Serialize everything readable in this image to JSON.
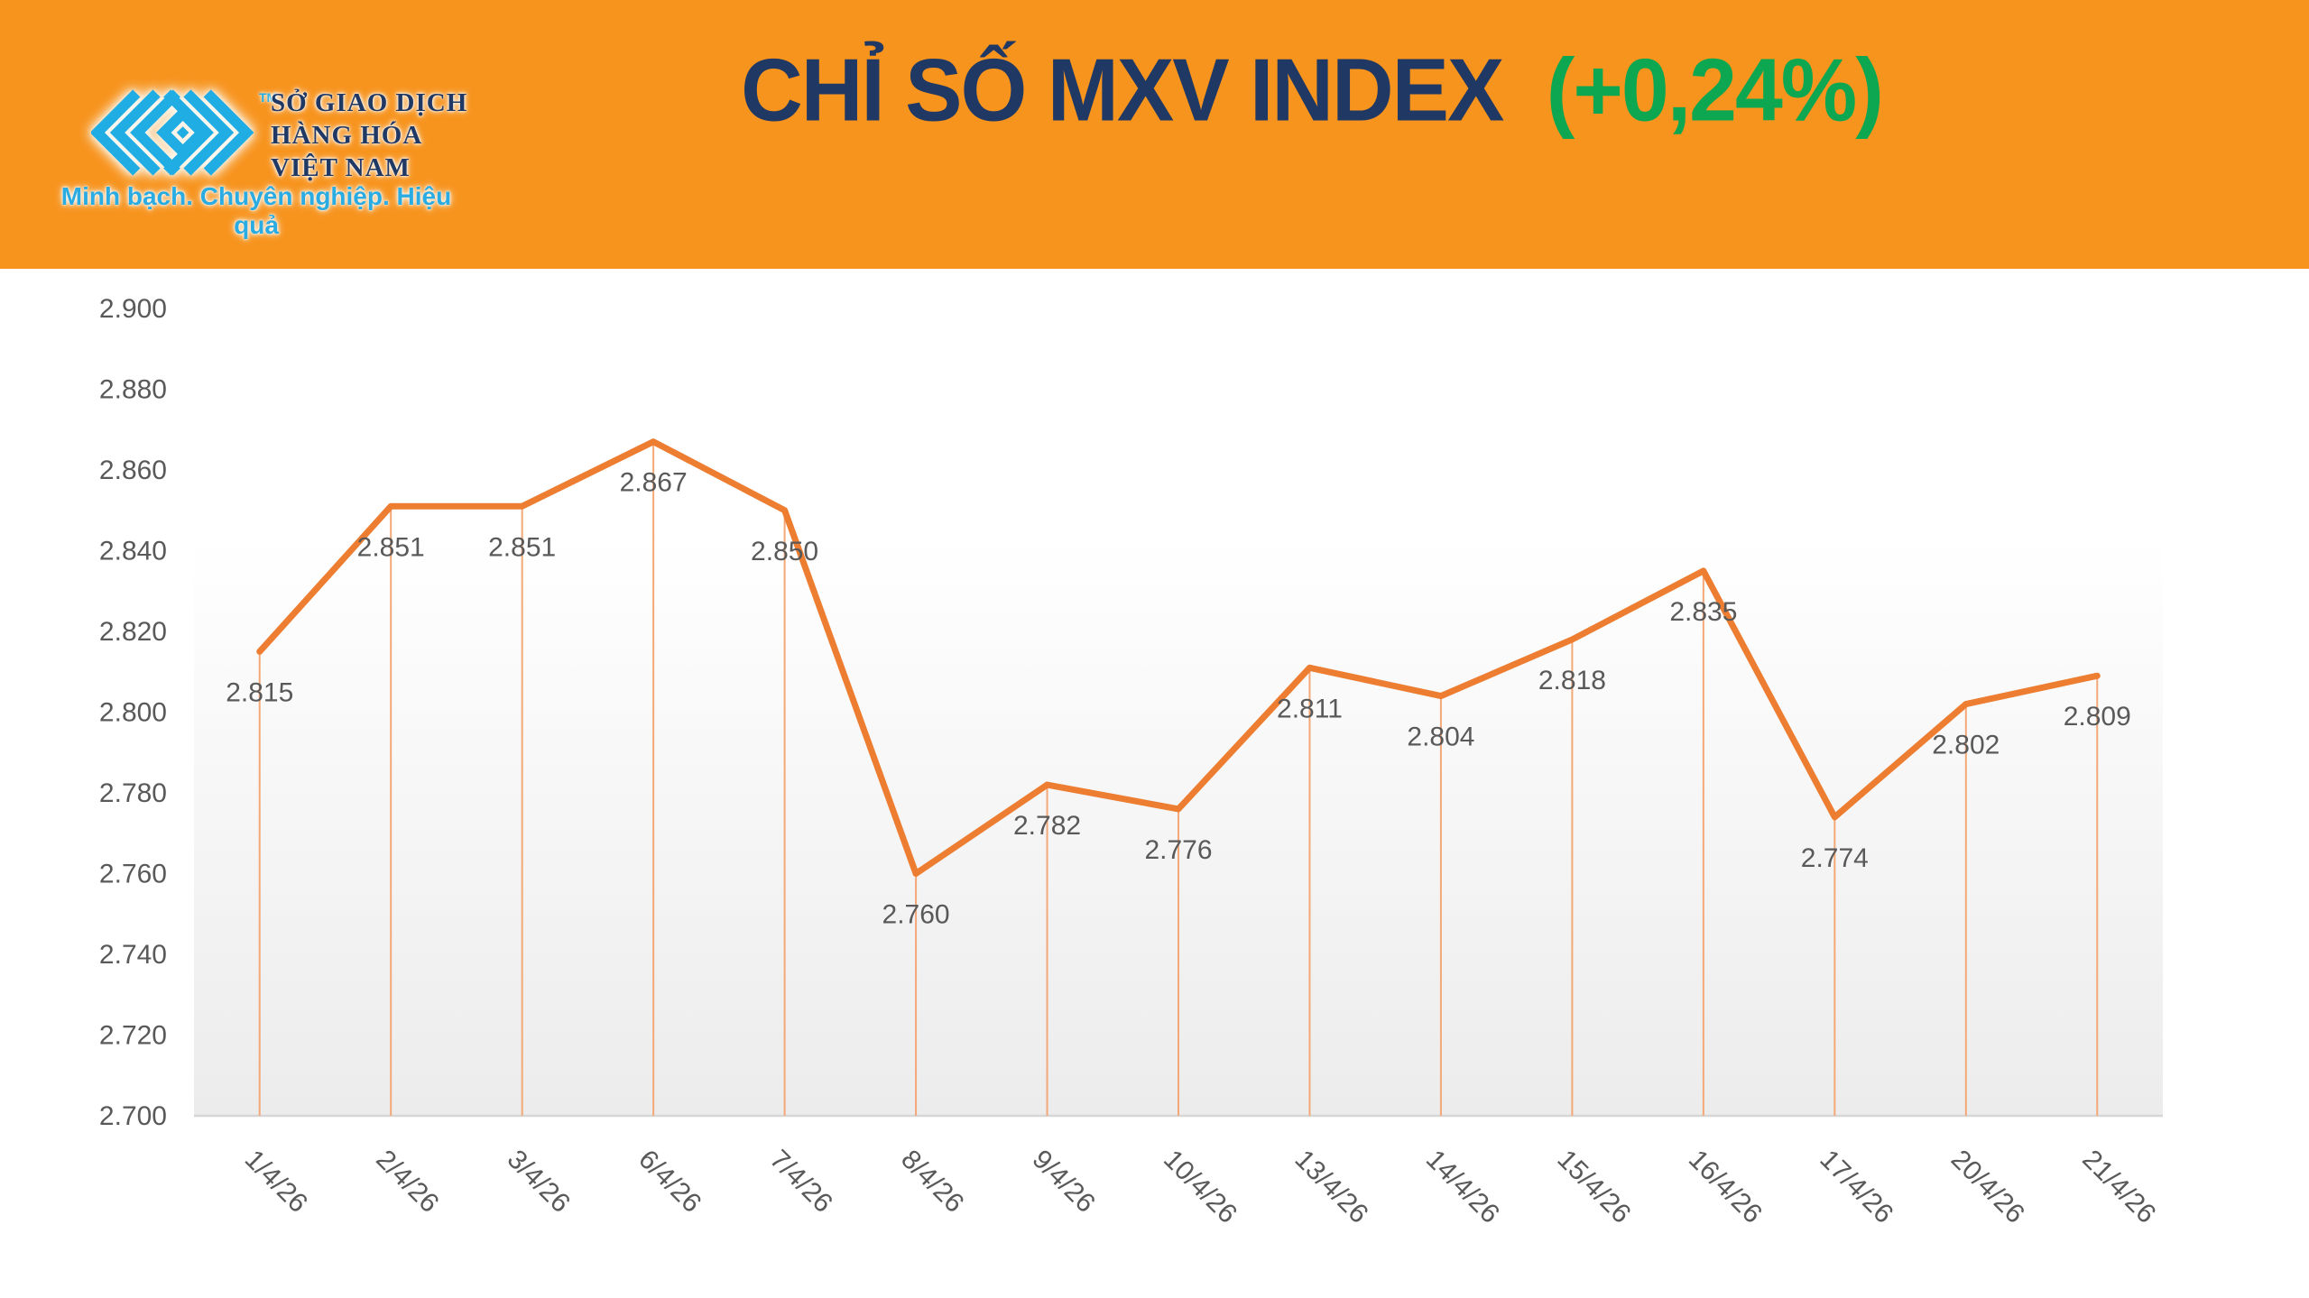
{
  "header": {
    "bg_color": "#F7941E",
    "logo": {
      "mark_color": "#1FADE4",
      "text_color": "#1F3864",
      "trademark": "TM",
      "org_name_lines": [
        "SỞ GIAO DỊCH",
        "HÀNG HÓA",
        "VIỆT NAM"
      ],
      "tagline": "Minh bạch. Chuyên nghiệp. Hiệu quả",
      "tagline_color": "#2AACE2"
    },
    "title": {
      "main": "CHỈ SỐ MXV INDEX",
      "change": "(+0,24%)",
      "main_color": "#1F3864",
      "change_color": "#0CA750"
    }
  },
  "chart_data": {
    "type": "line",
    "title": "CHỈ SỐ MXV INDEX (+0,24%)",
    "categories": [
      "1/4/26",
      "2/4/26",
      "3/4/26",
      "6/4/26",
      "7/4/26",
      "8/4/26",
      "9/4/26",
      "10/4/26",
      "13/4/26",
      "14/4/26",
      "15/4/26",
      "16/4/26",
      "17/4/26",
      "20/4/26",
      "21/4/26"
    ],
    "values": [
      2815,
      2851,
      2851,
      2867,
      2850,
      2760,
      2782,
      2776,
      2811,
      2804,
      2818,
      2835,
      2774,
      2802,
      2809
    ],
    "point_labels": [
      "2.815",
      "2.851",
      "2.851",
      "2.867",
      "2.850",
      "2.760",
      "2.782",
      "2.776",
      "2.811",
      "2.804",
      "2.818",
      "2.835",
      "2.774",
      "2.802",
      "2.809"
    ],
    "xlabel": "",
    "ylabel": "",
    "ylim": [
      2700,
      2900
    ],
    "ytick_step": 20,
    "ytick_labels": [
      "2.900",
      "2.880",
      "2.860",
      "2.840",
      "2.820",
      "2.800",
      "2.780",
      "2.760",
      "2.740",
      "2.720",
      "2.700"
    ],
    "grid": "off",
    "legend": "none",
    "line_color": "#ED7D31",
    "line_width": 7,
    "dropline_color": "#F4A877",
    "dropline_width": 2,
    "label_color": "#595959",
    "label_font_size": 30,
    "axis_line_color": "#D6D6D6",
    "plot_bg_top": "#FFFFFF",
    "plot_bg_bottom": "#ECECEC"
  }
}
